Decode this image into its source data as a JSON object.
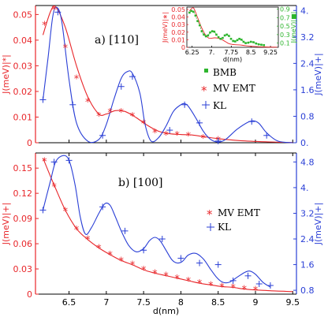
{
  "colors": {
    "red": "#e8262a",
    "blue": "#2a3fd6",
    "green": "#2db52d",
    "axis": "#000000"
  },
  "chart_data": [
    {
      "panel_title": "a) [110]",
      "type": "line",
      "x_range": [
        6.05,
        9.55
      ],
      "y_left_ticks": [
        "0",
        "0.01",
        "0.02",
        "0.03",
        "0.04",
        "0.05"
      ],
      "y_left_range": [
        0,
        0.0535
      ],
      "y_right_ticks": [
        "0.",
        "0.8",
        "1.6",
        "2.4",
        "3.2",
        "4."
      ],
      "y_right_range": [
        0,
        4.15
      ],
      "ylabel_left": "J(meV)|*|",
      "ylabel_right": "J(meV)|+|",
      "legend": [
        "BMB",
        "MV EMT",
        "KL"
      ],
      "series": [
        {
          "name": "MV EMT",
          "axis": "left",
          "x": [
            6.17,
            6.3,
            6.45,
            6.6,
            6.75,
            6.9,
            7.05,
            7.2,
            7.35,
            7.5,
            7.65,
            7.8,
            7.95,
            8.1,
            8.3,
            8.5
          ],
          "y": [
            0.046,
            0.052,
            0.037,
            0.025,
            0.016,
            0.0105,
            0.012,
            0.012,
            0.0105,
            0.0075,
            0.004,
            0.003,
            0.003,
            0.0028,
            0.0018,
            0.001
          ],
          "curve_x": [
            6.15,
            6.25,
            6.32,
            6.45,
            6.6,
            6.75,
            6.9,
            7.0,
            7.12,
            7.25,
            7.4,
            7.55,
            7.7,
            7.85,
            8.0,
            8.15,
            8.3,
            8.5,
            8.8,
            9.2,
            9.5
          ],
          "curve_y": [
            0.042,
            0.051,
            0.053,
            0.045,
            0.03,
            0.018,
            0.0112,
            0.0112,
            0.0125,
            0.0122,
            0.0098,
            0.0068,
            0.0045,
            0.0035,
            0.0032,
            0.003,
            0.0024,
            0.0016,
            0.0008,
            0.0003,
            0.0001
          ]
        },
        {
          "name": "KL",
          "axis": "right",
          "x": [
            6.15,
            6.35,
            6.55,
            6.95,
            7.2,
            7.35,
            7.85,
            8.05,
            8.25,
            8.5,
            8.95,
            9.15
          ],
          "y": [
            1.3,
            3.95,
            1.15,
            0.22,
            1.7,
            2.0,
            0.38,
            1.15,
            0.6,
            0.05,
            0.64,
            0.22
          ],
          "curve_x": [
            6.15,
            6.22,
            6.28,
            6.33,
            6.4,
            6.5,
            6.6,
            6.75,
            6.9,
            7.0,
            7.1,
            7.2,
            7.28,
            7.35,
            7.45,
            7.52,
            7.6,
            7.7,
            7.8,
            7.9,
            8.0,
            8.05,
            8.1,
            8.2,
            8.3,
            8.4,
            8.5,
            8.6,
            8.75,
            8.9,
            8.98,
            9.05,
            9.15,
            9.3,
            9.5
          ],
          "curve_y": [
            1.3,
            2.6,
            3.8,
            4.1,
            3.7,
            1.9,
            0.6,
            0.05,
            0.1,
            0.55,
            1.3,
            1.95,
            2.15,
            2.1,
            1.5,
            0.55,
            0.05,
            0.15,
            0.5,
            0.95,
            1.15,
            1.18,
            1.1,
            0.75,
            0.35,
            0.1,
            0.02,
            0.1,
            0.4,
            0.62,
            0.66,
            0.58,
            0.3,
            0.05,
            0.0
          ]
        }
      ],
      "inset": {
        "xlabel": "d(nm)",
        "x_ticks": [
          "6.25",
          "7.",
          "7.75",
          "8.5",
          "9.25"
        ],
        "x_range": [
          6.05,
          9.55
        ],
        "y_left_ticks": [
          "0.05",
          "0.04",
          "0.03",
          "0.02",
          "0.01",
          "0"
        ],
        "y_left_range": [
          0,
          0.053
        ],
        "y_right_ticks": [
          "0.9",
          "0.7",
          "0.5",
          "0.3",
          "0.1"
        ],
        "y_right_range": [
          0,
          0.95
        ],
        "ylabel_left": "J(meV)|∗|",
        "ylabel_right": "J(meV)|■|",
        "series": [
          {
            "name": "MV EMT",
            "axis": "left",
            "curve_x": [
              6.15,
              6.3,
              6.45,
              6.6,
              6.75,
              6.9,
              7.1,
              7.25,
              7.45,
              7.65,
              7.85,
              8.05,
              8.3,
              8.6,
              9.0,
              9.5
            ],
            "curve_y": [
              0.048,
              0.052,
              0.04,
              0.027,
              0.017,
              0.012,
              0.0125,
              0.012,
              0.009,
              0.005,
              0.0035,
              0.0032,
              0.0022,
              0.0012,
              0.0005,
              0.0002
            ]
          },
          {
            "name": "BMB",
            "axis": "right",
            "x": [
              6.15,
              6.22,
              6.3,
              6.38,
              6.46,
              6.54,
              6.62,
              6.7,
              6.78,
              6.86,
              6.94,
              7.02,
              7.1,
              7.18,
              7.26,
              7.34,
              7.42,
              7.5,
              7.58,
              7.66,
              7.74,
              7.82,
              7.9,
              7.98,
              8.06,
              8.14,
              8.22,
              8.3,
              8.4,
              8.5,
              8.6,
              8.7,
              8.8,
              8.9,
              9.0
            ],
            "y": [
              0.82,
              0.86,
              0.84,
              0.75,
              0.62,
              0.52,
              0.38,
              0.3,
              0.26,
              0.28,
              0.35,
              0.38,
              0.37,
              0.3,
              0.24,
              0.2,
              0.22,
              0.28,
              0.3,
              0.27,
              0.2,
              0.15,
              0.14,
              0.17,
              0.2,
              0.18,
              0.13,
              0.1,
              0.11,
              0.13,
              0.12,
              0.09,
              0.07,
              0.06,
              0.05
            ]
          }
        ]
      }
    },
    {
      "panel_title": "b) [100]",
      "type": "line",
      "xlabel": "d(nm)",
      "x_ticks": [
        "6.5",
        "7",
        "7.5",
        "8",
        "8.5",
        "9",
        "9.5"
      ],
      "x_range": [
        6.05,
        9.55
      ],
      "y_left_ticks": [
        "0",
        "0.03",
        "0.06",
        "0.09",
        "0.12",
        "0.15"
      ],
      "y_left_range": [
        0,
        0.168
      ],
      "y_right_ticks": [
        "0.8",
        "1.6",
        "2.4",
        "3.2",
        "4.",
        "4.8"
      ],
      "y_right_range": [
        0.68,
        5.08
      ],
      "ylabel_left": "J(meV)|+|",
      "ylabel_right": "J(meV)|+|",
      "legend": [
        "MV EMT",
        "KL"
      ],
      "series": [
        {
          "name": "MV EMT",
          "axis": "left",
          "x": [
            6.17,
            6.3,
            6.45,
            6.6,
            6.75,
            6.9,
            7.05,
            7.2,
            7.35,
            7.5,
            7.65,
            7.8,
            7.95,
            8.1,
            8.25,
            8.4,
            8.55,
            8.7,
            8.85,
            9.0
          ],
          "y": [
            0.158,
            0.128,
            0.099,
            0.077,
            0.065,
            0.055,
            0.047,
            0.04,
            0.035,
            0.029,
            0.025,
            0.022,
            0.019,
            0.016,
            0.013,
            0.011,
            0.009,
            0.008,
            0.006,
            0.005
          ],
          "curve_x": [
            6.15,
            6.3,
            6.45,
            6.6,
            6.75,
            6.9,
            7.05,
            7.2,
            7.35,
            7.5,
            7.65,
            7.8,
            7.95,
            8.1,
            8.25,
            8.4,
            8.55,
            8.7,
            8.85,
            9.0,
            9.2,
            9.5
          ],
          "curve_y": [
            0.162,
            0.13,
            0.1,
            0.078,
            0.065,
            0.055,
            0.047,
            0.04,
            0.035,
            0.029,
            0.025,
            0.022,
            0.019,
            0.016,
            0.013,
            0.011,
            0.009,
            0.008,
            0.006,
            0.005,
            0.004,
            0.003
          ]
        },
        {
          "name": "KL",
          "axis": "right",
          "x": [
            6.15,
            6.3,
            6.5,
            6.95,
            7.25,
            7.5,
            7.75,
            8.0,
            8.25,
            8.5,
            8.7,
            8.9,
            9.05,
            9.2
          ],
          "y": [
            3.3,
            4.8,
            4.85,
            3.4,
            2.65,
            2.05,
            2.4,
            1.8,
            1.65,
            1.6,
            1.1,
            1.25,
            1.0,
            0.95
          ],
          "curve_x": [
            6.15,
            6.25,
            6.32,
            6.42,
            6.5,
            6.58,
            6.65,
            6.72,
            6.8,
            6.9,
            6.98,
            7.05,
            7.12,
            7.2,
            7.3,
            7.4,
            7.5,
            7.58,
            7.65,
            7.72,
            7.8,
            7.88,
            7.95,
            8.02,
            8.1,
            8.2,
            8.3,
            8.4,
            8.48,
            8.56,
            8.65,
            8.75,
            8.85,
            8.92,
            9.0,
            9.1,
            9.2
          ],
          "curve_y": [
            3.3,
            4.2,
            4.8,
            5.0,
            4.85,
            4.1,
            3.1,
            2.55,
            2.75,
            3.2,
            3.5,
            3.45,
            3.1,
            2.65,
            2.2,
            2.0,
            2.1,
            2.35,
            2.45,
            2.35,
            2.05,
            1.75,
            1.65,
            1.7,
            1.9,
            1.95,
            1.78,
            1.45,
            1.2,
            1.05,
            1.05,
            1.2,
            1.35,
            1.4,
            1.3,
            1.05,
            0.9
          ]
        }
      ]
    }
  ]
}
